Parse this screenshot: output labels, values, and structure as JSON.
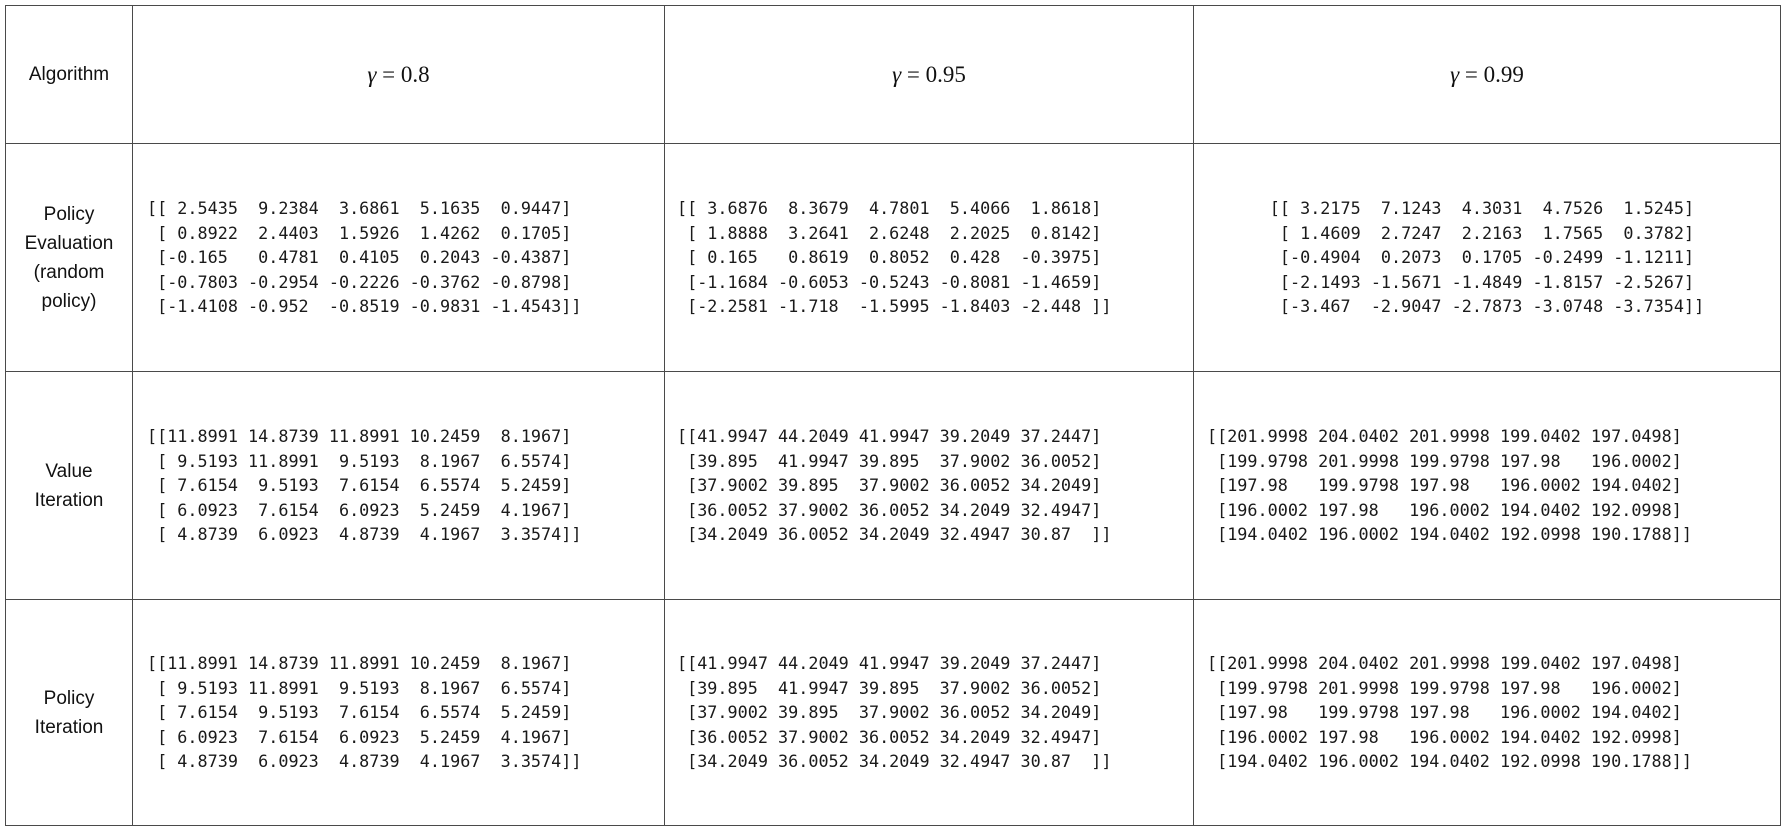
{
  "header": {
    "algorithm_label": "Algorithm",
    "gammas": [
      {
        "symbol": "γ",
        "value": "= 0.8"
      },
      {
        "symbol": "γ",
        "value": "= 0.95"
      },
      {
        "symbol": "γ",
        "value": "= 0.99"
      }
    ]
  },
  "rows": [
    {
      "label": "Policy\nEvaluation\n(random\npolicy)",
      "matrices": [
        "[[ 2.5435  9.2384  3.6861  5.1635  0.9447]\n [ 0.8922  2.4403  1.5926  1.4262  0.1705]\n [-0.165   0.4781  0.4105  0.2043 -0.4387]\n [-0.7803 -0.2954 -0.2226 -0.3762 -0.8798]\n [-1.4108 -0.952  -0.8519 -0.9831 -1.4543]]",
        "[[ 3.6876  8.3679  4.7801  5.4066  1.8618]\n [ 1.8888  3.2641  2.6248  2.2025  0.8142]\n [ 0.165   0.8619  0.8052  0.428  -0.3975]\n [-1.1684 -0.6053 -0.5243 -0.8081 -1.4659]\n [-2.2581 -1.718  -1.5995 -1.8403 -2.448 ]]",
        "[[ 3.2175  7.1243  4.3031  4.7526  1.5245]\n [ 1.4609  2.7247  2.2163  1.7565  0.3782]\n [-0.4904  0.2073  0.1705 -0.2499 -1.1211]\n [-2.1493 -1.5671 -1.4849 -1.8157 -2.5267]\n [-3.467  -2.9047 -2.7873 -3.0748 -3.7354]]"
      ]
    },
    {
      "label": "Value\nIteration",
      "matrices": [
        "[[11.8991 14.8739 11.8991 10.2459  8.1967]\n [ 9.5193 11.8991  9.5193  8.1967  6.5574]\n [ 7.6154  9.5193  7.6154  6.5574  5.2459]\n [ 6.0923  7.6154  6.0923  5.2459  4.1967]\n [ 4.8739  6.0923  4.8739  4.1967  3.3574]]",
        "[[41.9947 44.2049 41.9947 39.2049 37.2447]\n [39.895  41.9947 39.895  37.9002 36.0052]\n [37.9002 39.895  37.9002 36.0052 34.2049]\n [36.0052 37.9002 36.0052 34.2049 32.4947]\n [34.2049 36.0052 34.2049 32.4947 30.87  ]]",
        "[[201.9998 204.0402 201.9998 199.0402 197.0498]\n [199.9798 201.9998 199.9798 197.98   196.0002]\n [197.98   199.9798 197.98   196.0002 194.0402]\n [196.0002 197.98   196.0002 194.0402 192.0998]\n [194.0402 196.0002 194.0402 192.0998 190.1788]]"
      ]
    },
    {
      "label": "Policy\nIteration",
      "matrices": [
        "[[11.8991 14.8739 11.8991 10.2459  8.1967]\n [ 9.5193 11.8991  9.5193  8.1967  6.5574]\n [ 7.6154  9.5193  7.6154  6.5574  5.2459]\n [ 6.0923  7.6154  6.0923  5.2459  4.1967]\n [ 4.8739  6.0923  4.8739  4.1967  3.3574]]",
        "[[41.9947 44.2049 41.9947 39.2049 37.2447]\n [39.895  41.9947 39.895  37.9002 36.0052]\n [37.9002 39.895  37.9002 36.0052 34.2049]\n [36.0052 37.9002 36.0052 34.2049 32.4947]\n [34.2049 36.0052 34.2049 32.4947 30.87  ]]",
        "[[201.9998 204.0402 201.9998 199.0402 197.0498]\n [199.9798 201.9998 199.9798 197.98   196.0002]\n [197.98   199.9798 197.98   196.0002 194.0402]\n [196.0002 197.98   196.0002 194.0402 192.0998]\n [194.0402 196.0002 194.0402 192.0998 190.1788]]"
      ]
    }
  ]
}
